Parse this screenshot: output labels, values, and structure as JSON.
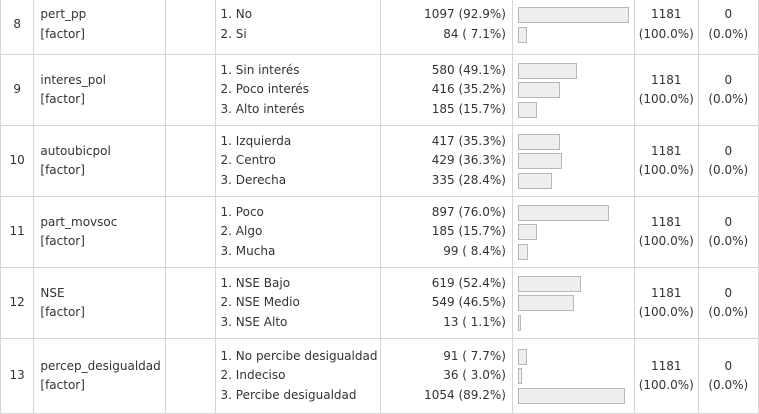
{
  "rows": [
    {
      "no": "8",
      "name": "pert_pp",
      "type": "[factor]",
      "values": [
        "1. No",
        "2. Si"
      ],
      "freqs": [
        "1097 (92.9%)",
        "84 ( 7.1%)"
      ],
      "props": [
        0.929,
        0.071
      ],
      "valid": "1181",
      "valid_pct": "(100.0%)",
      "missing": "0",
      "missing_pct": "(0.0%)"
    },
    {
      "no": "9",
      "name": "interes_pol",
      "type": "[factor]",
      "values": [
        "1. Sin interés",
        "2. Poco interés",
        "3. Alto interés"
      ],
      "freqs": [
        "580 (49.1%)",
        "416 (35.2%)",
        "185 (15.7%)"
      ],
      "props": [
        0.491,
        0.352,
        0.157
      ],
      "valid": "1181",
      "valid_pct": "(100.0%)",
      "missing": "0",
      "missing_pct": "(0.0%)"
    },
    {
      "no": "10",
      "name": "autoubicpol",
      "type": "[factor]",
      "values": [
        "1. Izquierda",
        "2. Centro",
        "3. Derecha"
      ],
      "freqs": [
        "417 (35.3%)",
        "429 (36.3%)",
        "335 (28.4%)"
      ],
      "props": [
        0.353,
        0.363,
        0.284
      ],
      "valid": "1181",
      "valid_pct": "(100.0%)",
      "missing": "0",
      "missing_pct": "(0.0%)"
    },
    {
      "no": "11",
      "name": "part_movsoc",
      "type": "[factor]",
      "values": [
        "1. Poco",
        "2. Algo",
        "3. Mucha"
      ],
      "freqs": [
        "897 (76.0%)",
        "185 (15.7%)",
        "99 ( 8.4%)"
      ],
      "props": [
        0.76,
        0.157,
        0.084
      ],
      "valid": "1181",
      "valid_pct": "(100.0%)",
      "missing": "0",
      "missing_pct": "(0.0%)"
    },
    {
      "no": "12",
      "name": "NSE",
      "type": "[factor]",
      "values": [
        "1. NSE Bajo",
        "2. NSE Medio",
        "3. NSE Alto"
      ],
      "freqs": [
        "619 (52.4%)",
        "549 (46.5%)",
        "13 ( 1.1%)"
      ],
      "props": [
        0.524,
        0.465,
        0.011
      ],
      "valid": "1181",
      "valid_pct": "(100.0%)",
      "missing": "0",
      "missing_pct": "(0.0%)"
    },
    {
      "no": "13",
      "name": "percep_desigualdad",
      "type": "[factor]",
      "values": [
        "1. No percibe desigualdad",
        "2. Indeciso",
        "3. Percibe desigualdad"
      ],
      "freqs": [
        "91 ( 7.7%)",
        "36 ( 3.0%)",
        "1054 (89.2%)"
      ],
      "props": [
        0.077,
        0.03,
        0.892
      ],
      "valid": "1181",
      "valid_pct": "(100.0%)",
      "missing": "0",
      "missing_pct": "(0.0%)"
    }
  ]
}
